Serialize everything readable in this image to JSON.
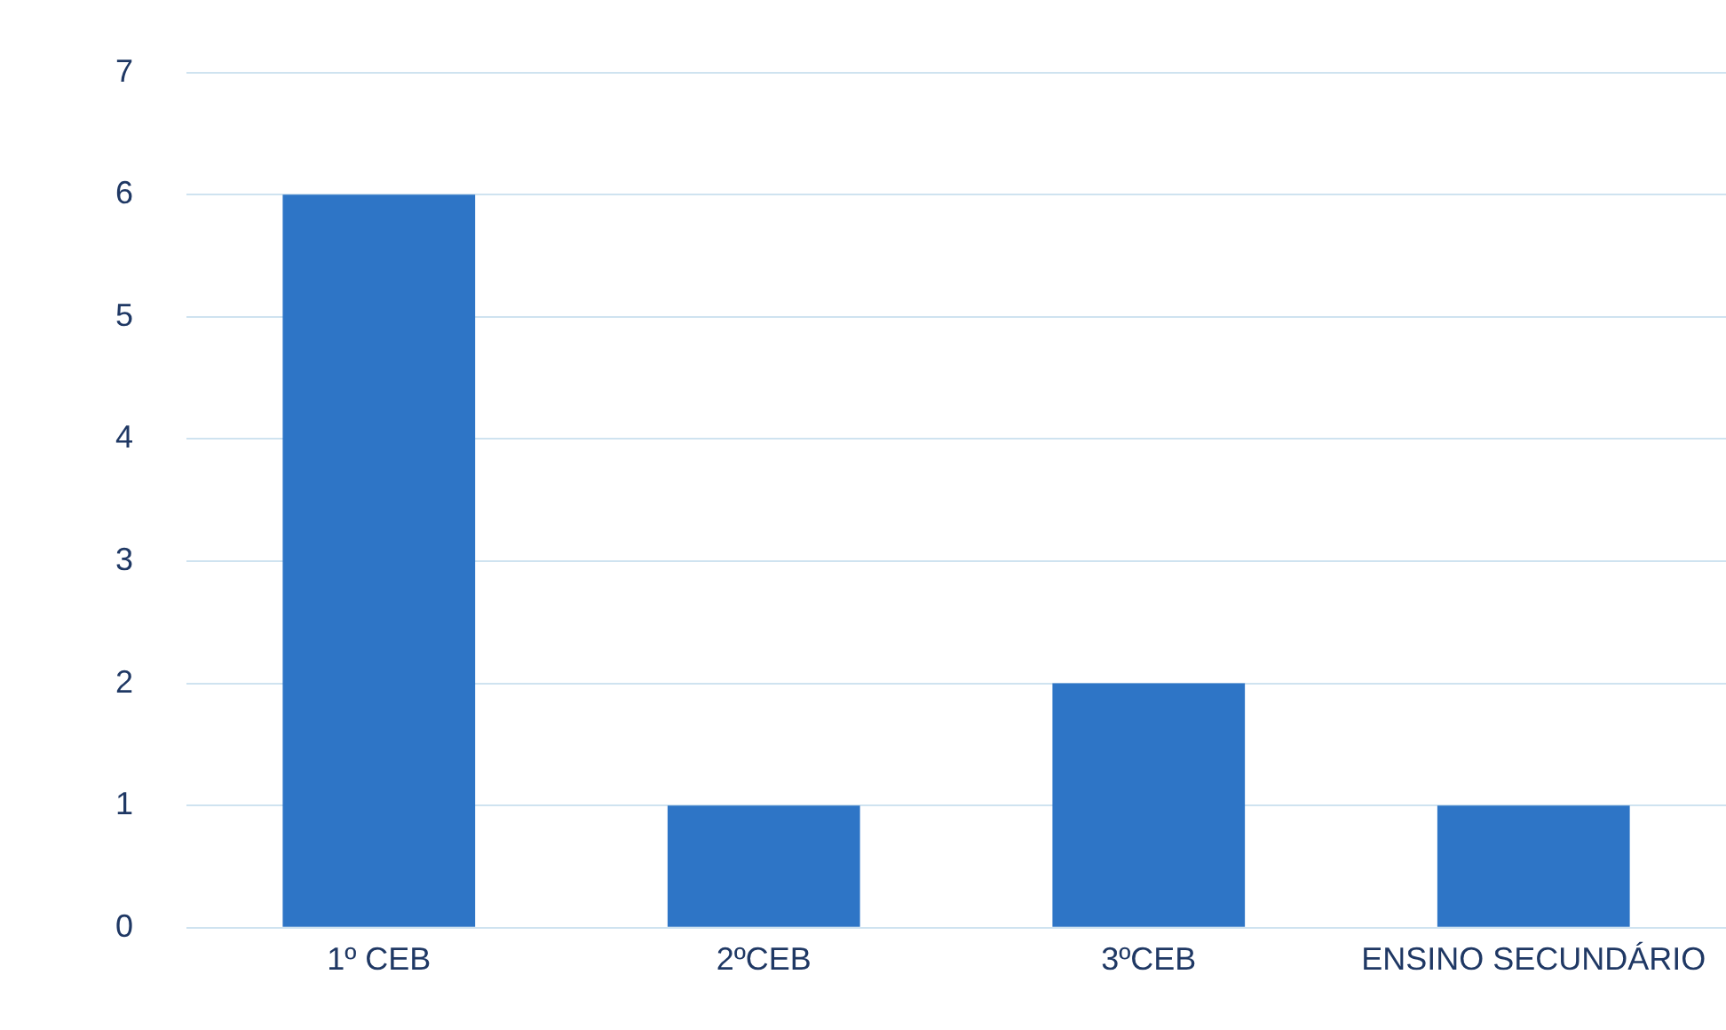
{
  "chart_data": {
    "type": "bar",
    "categories": [
      "1º CEB",
      "2ºCEB",
      "3ºCEB",
      "ENSINO SECUNDÁRIO"
    ],
    "values": [
      6,
      1,
      2,
      1
    ],
    "color": "#2e75c6",
    "ylim": [
      0,
      7
    ],
    "yticks": [
      0,
      1,
      2,
      3,
      4,
      5,
      6,
      7
    ],
    "grid": "y"
  }
}
